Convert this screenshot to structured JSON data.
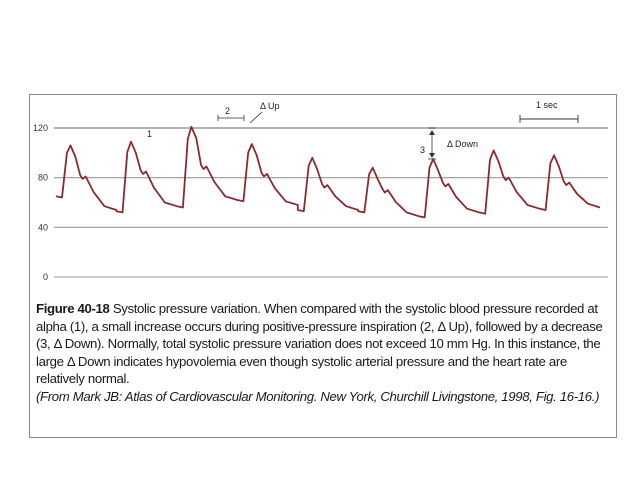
{
  "chart_data": {
    "type": "line",
    "title": "",
    "xlabel": "",
    "ylabel": "",
    "ylim": [
      0,
      120
    ],
    "y_ticks": [
      "120",
      "80",
      "40",
      "0"
    ],
    "y_tick_values": [
      120,
      80,
      40,
      0
    ],
    "grid": "horizontal",
    "line_color": "#8b2a2f",
    "grid_color": "#9a9a9a",
    "time_scale_label": "1 sec",
    "series": [
      {
        "beats": [
          {
            "start_y": 65,
            "peak_y": 106,
            "dicrotic_y": 79,
            "end_y": 54
          },
          {
            "start_y": 53,
            "peak_y": 109,
            "dicrotic_y": 83,
            "end_y": 57
          },
          {
            "start_y": 57,
            "peak_y": 121,
            "dicrotic_y": 87,
            "end_y": 62
          },
          {
            "start_y": 62,
            "peak_y": 107,
            "dicrotic_y": 81,
            "end_y": 58
          },
          {
            "start_y": 54,
            "peak_y": 96,
            "dicrotic_y": 72,
            "end_y": 54
          },
          {
            "start_y": 53,
            "peak_y": 88,
            "dicrotic_y": 68,
            "end_y": 49
          },
          {
            "start_y": 49,
            "peak_y": 95,
            "dicrotic_y": 73,
            "end_y": 52
          },
          {
            "start_y": 52,
            "peak_y": 102,
            "dicrotic_y": 78,
            "end_y": 55
          },
          {
            "start_y": 55,
            "peak_y": 98,
            "dicrotic_y": 74,
            "end_y": 56
          }
        ]
      }
    ],
    "annotations": {
      "label_1": "1",
      "label_2": "2",
      "label_3": "3",
      "delta_up": "Δ Up",
      "delta_down": "Δ Down"
    }
  },
  "caption": {
    "figure_label": "Figure 40-18",
    "body": " Systolic pressure variation. When compared with the systolic blood pressure recorded at alpha (1), a small increase occurs during positive-pressure inspiration (2, Δ Up), followed by a decrease (3, Δ Down). Normally, total systolic pressure variation does not exceed 10 mm Hg. In this instance, the large Δ Down indicates hypovolemia even though systolic arterial pressure and the heart rate are relatively normal.",
    "source": "(From Mark JB: Atlas of Cardiovascular Monitoring. New York, Churchill Livingstone, 1998, Fig. 16-16.)"
  }
}
